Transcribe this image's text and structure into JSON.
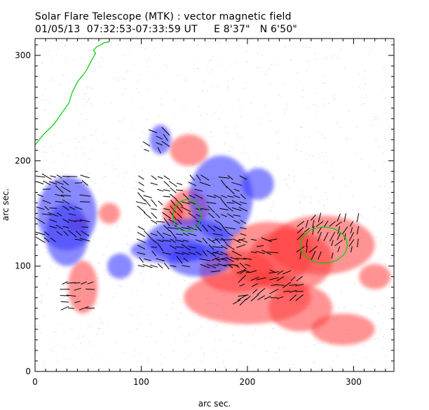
{
  "title": {
    "line1": "Solar Flare Telescope (MTK) : vector magnetic field",
    "line2": "01/05/13  07:32:53-07:33:59 UT     E 8'37\"   N 6'50\""
  },
  "colors": {
    "positive": "#ff3b3b",
    "negative": "#3b3bff",
    "contour": "#00cc00",
    "vector": "#000000"
  },
  "chart_data": {
    "type": "heatmap",
    "title": "Solar Flare Telescope (MTK) : vector magnetic field",
    "xlabel": "arc sec.",
    "ylabel": "arc sec.",
    "xlim": [
      0,
      338
    ],
    "ylim": [
      0,
      316
    ],
    "xticks": [
      0,
      100,
      200,
      300
    ],
    "yticks": [
      0,
      100,
      200,
      300
    ],
    "grid": false,
    "positive_regions": [
      {
        "x": 270,
        "y": 120,
        "rx": 50,
        "ry": 28
      },
      {
        "x": 220,
        "y": 112,
        "rx": 42,
        "ry": 30
      },
      {
        "x": 190,
        "y": 95,
        "rx": 35,
        "ry": 20
      },
      {
        "x": 200,
        "y": 70,
        "rx": 60,
        "ry": 25
      },
      {
        "x": 250,
        "y": 60,
        "rx": 30,
        "ry": 22
      },
      {
        "x": 240,
        "y": 105,
        "rx": 40,
        "ry": 30
      },
      {
        "x": 145,
        "y": 155,
        "rx": 18,
        "ry": 18
      },
      {
        "x": 130,
        "y": 150,
        "rx": 10,
        "ry": 12
      },
      {
        "x": 145,
        "y": 210,
        "rx": 18,
        "ry": 15
      },
      {
        "x": 45,
        "y": 80,
        "rx": 14,
        "ry": 25
      },
      {
        "x": 40,
        "y": 140,
        "rx": 10,
        "ry": 8
      },
      {
        "x": 70,
        "y": 150,
        "rx": 10,
        "ry": 10
      },
      {
        "x": 290,
        "y": 40,
        "rx": 30,
        "ry": 15
      },
      {
        "x": 320,
        "y": 90,
        "rx": 15,
        "ry": 12
      }
    ],
    "negative_regions": [
      {
        "x": 175,
        "y": 165,
        "rx": 30,
        "ry": 40
      },
      {
        "x": 145,
        "y": 125,
        "rx": 40,
        "ry": 20
      },
      {
        "x": 125,
        "y": 115,
        "rx": 35,
        "ry": 12
      },
      {
        "x": 155,
        "y": 105,
        "rx": 30,
        "ry": 15
      },
      {
        "x": 30,
        "y": 150,
        "rx": 28,
        "ry": 35
      },
      {
        "x": 30,
        "y": 130,
        "rx": 20,
        "ry": 30
      },
      {
        "x": 118,
        "y": 220,
        "rx": 10,
        "ry": 14
      },
      {
        "x": 210,
        "y": 178,
        "rx": 15,
        "ry": 15
      },
      {
        "x": 80,
        "y": 100,
        "rx": 12,
        "ry": 12
      }
    ],
    "green_contours": [
      {
        "x": 272,
        "y": 120,
        "rx": 22,
        "ry": 17
      },
      {
        "x": 143,
        "y": 148,
        "rx": 13,
        "ry": 15
      }
    ],
    "green_limb_curve": [
      [
        0,
        215
      ],
      [
        8,
        225
      ],
      [
        18,
        235
      ],
      [
        25,
        245
      ],
      [
        32,
        255
      ],
      [
        35,
        265
      ],
      [
        40,
        275
      ],
      [
        48,
        285
      ],
      [
        53,
        295
      ],
      [
        57,
        302
      ],
      [
        55,
        305
      ],
      [
        58,
        308
      ],
      [
        62,
        310
      ],
      [
        65,
        312
      ],
      [
        70,
        313
      ]
    ],
    "vector_regions": [
      {
        "x0": 5,
        "x1": 50,
        "y0": 125,
        "y1": 185,
        "angle": -20
      },
      {
        "x0": 28,
        "x1": 52,
        "y0": 60,
        "y1": 85,
        "angle": 10
      },
      {
        "x0": 100,
        "x1": 200,
        "y0": 100,
        "y1": 185,
        "angle": -30
      },
      {
        "x0": 105,
        "x1": 125,
        "y0": 210,
        "y1": 230,
        "angle": -40
      },
      {
        "x0": 170,
        "x1": 225,
        "y0": 95,
        "y1": 130,
        "angle": 0
      },
      {
        "x0": 250,
        "x1": 305,
        "y0": 110,
        "y1": 150,
        "angle": 60
      },
      {
        "x0": 195,
        "x1": 250,
        "y0": 70,
        "y1": 95,
        "angle": 20
      },
      {
        "x0": 190,
        "x1": 200,
        "y0": 60,
        "y1": 75,
        "angle": 20
      }
    ]
  }
}
